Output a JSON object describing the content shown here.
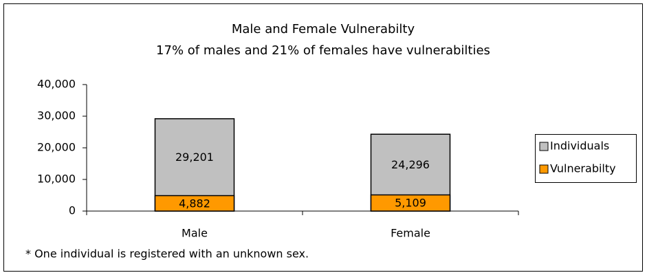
{
  "chart_data": {
    "type": "bar",
    "title": "Male and Female Vulnerabilty",
    "subtitle": "17% of males and 21% of females have vulnerabilties",
    "categories": [
      "Male",
      "Female"
    ],
    "series": [
      {
        "name": "Individuals",
        "color": "#c0c0c0",
        "values": [
          29201,
          24296
        ],
        "value_labels": [
          "29,201",
          "24,296"
        ]
      },
      {
        "name": "Vulnerabilty",
        "color": "#ff9900",
        "values": [
          4882,
          5109
        ],
        "value_labels": [
          "4,882",
          "5,109"
        ]
      }
    ],
    "ylim": [
      0,
      40000
    ],
    "yticks": [
      0,
      {
        "value": 10000,
        "label": "10,000"
      },
      {
        "value": 20000,
        "label": "20,000"
      },
      {
        "value": 30000,
        "label": "30,000"
      },
      {
        "value": 40000,
        "label": "40,000"
      }
    ],
    "legend": "right",
    "note": "* One individual is registered with an unknown sex."
  }
}
